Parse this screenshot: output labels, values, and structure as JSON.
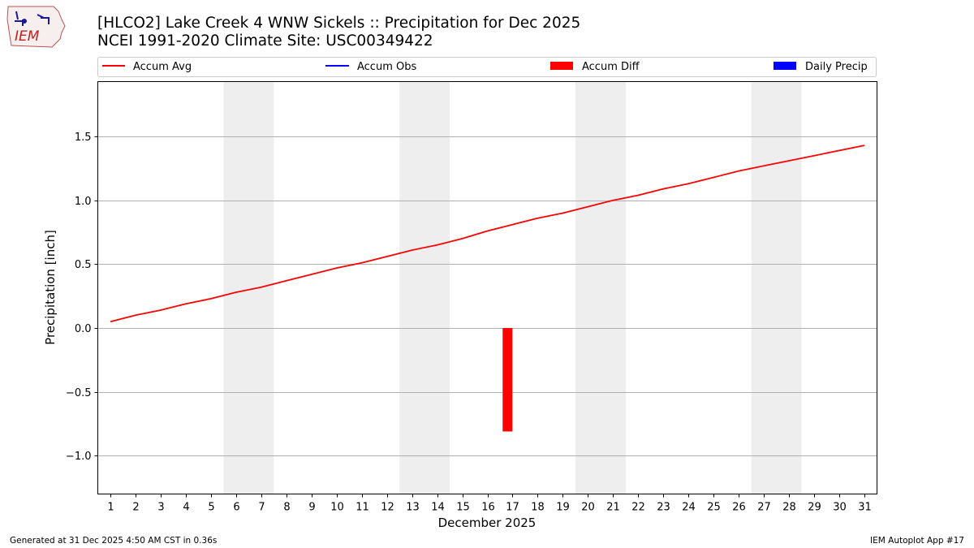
{
  "header": {
    "title_line1": "[HLCO2] Lake Creek 4 WNW Sickels :: Precipitation for Dec 2025",
    "title_line2": "NCEI 1991-2020 Climate Site: USC00349422",
    "logo_text": "IEM"
  },
  "footer": {
    "generated": "Generated at 31 Dec 2025 4:50 AM CST in 0.36s",
    "app": "IEM Autoplot App #17"
  },
  "colors": {
    "accum_avg": "#ff0000",
    "accum_obs": "#0000ff",
    "accum_diff": "#ff0000",
    "daily_precip": "#0000ff",
    "weekend_shade": "#eeeeee",
    "grid": "#b0b0b0"
  },
  "chart_data": {
    "type": "line",
    "xlabel": "December 2025",
    "ylabel": "Precipitation [inch]",
    "xlim": [
      0.5,
      31.5
    ],
    "ylim": [
      -1.3,
      1.93
    ],
    "yticks": [
      -1.0,
      -0.5,
      0.0,
      0.5,
      1.0,
      1.5
    ],
    "ytick_labels": [
      "−1.0",
      "−0.5",
      "0.0",
      "0.5",
      "1.0",
      "1.5"
    ],
    "grid": "y",
    "legend_placement": "top",
    "x": [
      1,
      2,
      3,
      4,
      5,
      6,
      7,
      8,
      9,
      10,
      11,
      12,
      13,
      14,
      15,
      16,
      17,
      18,
      19,
      20,
      21,
      22,
      23,
      24,
      25,
      26,
      27,
      28,
      29,
      30,
      31
    ],
    "weekend_spans": [
      [
        6,
        7
      ],
      [
        13,
        14
      ],
      [
        20,
        21
      ],
      [
        27,
        28
      ]
    ],
    "legend": [
      "Accum Avg",
      "Accum Obs",
      "Accum Diff",
      "Daily Precip"
    ],
    "series": [
      {
        "name": "Accum Avg",
        "kind": "line",
        "values": [
          0.05,
          0.1,
          0.14,
          0.19,
          0.23,
          0.28,
          0.32,
          0.37,
          0.42,
          0.47,
          0.51,
          0.56,
          0.61,
          0.65,
          0.7,
          0.76,
          0.81,
          0.86,
          0.9,
          0.95,
          1.0,
          1.04,
          1.09,
          1.13,
          1.18,
          1.23,
          1.27,
          1.31,
          1.35,
          1.39,
          1.43
        ]
      },
      {
        "name": "Accum Diff",
        "kind": "bar",
        "x": [
          16.8
        ],
        "values": [
          -0.81
        ]
      }
    ]
  }
}
